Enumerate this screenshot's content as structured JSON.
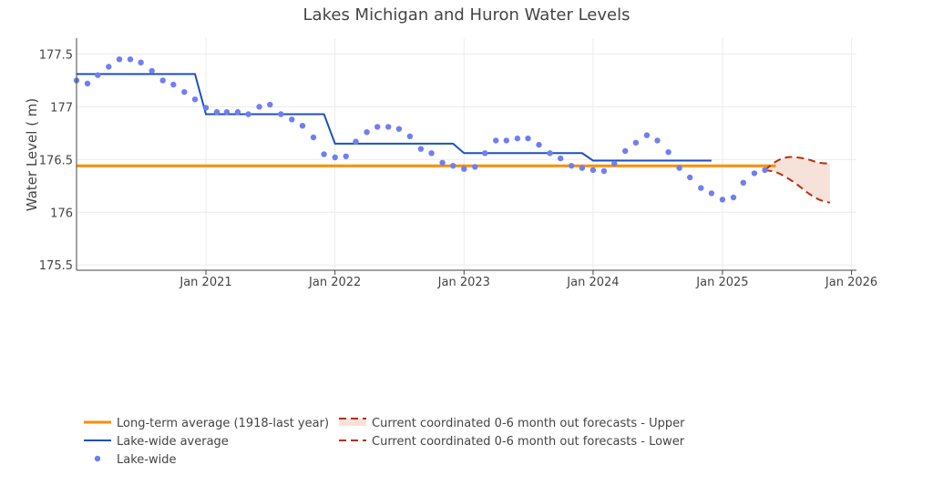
{
  "chart_data": {
    "type": "line",
    "title": "Lakes Michigan and Huron Water Levels",
    "xlabel": "",
    "ylabel": "Water Level ( m)",
    "x_range": [
      "2020-01-01",
      "2026-01-15"
    ],
    "ylim": [
      175.45,
      177.65
    ],
    "x_ticks": [
      {
        "date": "2021-01-01",
        "label": "Jan 2021"
      },
      {
        "date": "2022-01-01",
        "label": "Jan 2022"
      },
      {
        "date": "2023-01-01",
        "label": "Jan 2023"
      },
      {
        "date": "2024-01-01",
        "label": "Jan 2024"
      },
      {
        "date": "2025-01-01",
        "label": "Jan 2025"
      },
      {
        "date": "2026-01-01",
        "label": "Jan 2026"
      }
    ],
    "y_ticks": [
      {
        "value": 175.5,
        "label": "175.5"
      },
      {
        "value": 176,
        "label": "176"
      },
      {
        "value": 176.5,
        "label": "176.5"
      },
      {
        "value": 177,
        "label": "177"
      },
      {
        "value": 177.5,
        "label": "177.5"
      }
    ],
    "grid": true,
    "legend_position": "bottom-left",
    "colors": {
      "long_term": "#ff8c00",
      "lake_avg": "#1f4fbf",
      "monthly": "#6f7ff0",
      "forecast": "#b5300c",
      "forecast_fill": "#f7e2da",
      "grid": "#ececec",
      "axis": "#444444",
      "text": "#444444"
    },
    "series": [
      {
        "name": "Long-term average (1918-last year)",
        "kind": "line",
        "points": [
          {
            "x": "2020-01-01",
            "y": 176.44
          },
          {
            "x": "2025-06-01",
            "y": 176.44
          }
        ]
      },
      {
        "name": "Lake-wide average",
        "kind": "line",
        "points": [
          {
            "x": "2020-01-01",
            "y": 177.31
          },
          {
            "x": "2020-12-01",
            "y": 177.31
          },
          {
            "x": "2021-01-01",
            "y": 176.93
          },
          {
            "x": "2021-12-01",
            "y": 176.93
          },
          {
            "x": "2022-01-01",
            "y": 176.65
          },
          {
            "x": "2022-12-01",
            "y": 176.65
          },
          {
            "x": "2023-01-01",
            "y": 176.56
          },
          {
            "x": "2023-12-01",
            "y": 176.56
          },
          {
            "x": "2024-01-01",
            "y": 176.49
          },
          {
            "x": "2024-12-01",
            "y": 176.49
          }
        ]
      },
      {
        "name": "Lake-wide",
        "kind": "markers",
        "points": [
          {
            "x": "2020-01-01",
            "y": 177.25
          },
          {
            "x": "2020-02-01",
            "y": 177.22
          },
          {
            "x": "2020-03-01",
            "y": 177.3
          },
          {
            "x": "2020-04-01",
            "y": 177.38
          },
          {
            "x": "2020-05-01",
            "y": 177.45
          },
          {
            "x": "2020-06-01",
            "y": 177.45
          },
          {
            "x": "2020-07-01",
            "y": 177.42
          },
          {
            "x": "2020-08-01",
            "y": 177.34
          },
          {
            "x": "2020-09-01",
            "y": 177.25
          },
          {
            "x": "2020-10-01",
            "y": 177.21
          },
          {
            "x": "2020-11-01",
            "y": 177.14
          },
          {
            "x": "2020-12-01",
            "y": 177.07
          },
          {
            "x": "2021-01-01",
            "y": 176.99
          },
          {
            "x": "2021-02-01",
            "y": 176.95
          },
          {
            "x": "2021-03-01",
            "y": 176.95
          },
          {
            "x": "2021-04-01",
            "y": 176.95
          },
          {
            "x": "2021-05-01",
            "y": 176.93
          },
          {
            "x": "2021-06-01",
            "y": 177.0
          },
          {
            "x": "2021-07-01",
            "y": 177.02
          },
          {
            "x": "2021-08-01",
            "y": 176.93
          },
          {
            "x": "2021-09-01",
            "y": 176.88
          },
          {
            "x": "2021-10-01",
            "y": 176.82
          },
          {
            "x": "2021-11-01",
            "y": 176.71
          },
          {
            "x": "2021-12-01",
            "y": 176.55
          },
          {
            "x": "2022-01-01",
            "y": 176.52
          },
          {
            "x": "2022-02-01",
            "y": 176.53
          },
          {
            "x": "2022-03-01",
            "y": 176.67
          },
          {
            "x": "2022-04-01",
            "y": 176.76
          },
          {
            "x": "2022-05-01",
            "y": 176.81
          },
          {
            "x": "2022-06-01",
            "y": 176.81
          },
          {
            "x": "2022-07-01",
            "y": 176.79
          },
          {
            "x": "2022-08-01",
            "y": 176.72
          },
          {
            "x": "2022-09-01",
            "y": 176.6
          },
          {
            "x": "2022-10-01",
            "y": 176.56
          },
          {
            "x": "2022-11-01",
            "y": 176.47
          },
          {
            "x": "2022-12-01",
            "y": 176.44
          },
          {
            "x": "2023-01-01",
            "y": 176.41
          },
          {
            "x": "2023-02-01",
            "y": 176.43
          },
          {
            "x": "2023-03-01",
            "y": 176.56
          },
          {
            "x": "2023-04-01",
            "y": 176.68
          },
          {
            "x": "2023-05-01",
            "y": 176.68
          },
          {
            "x": "2023-06-01",
            "y": 176.7
          },
          {
            "x": "2023-07-01",
            "y": 176.7
          },
          {
            "x": "2023-08-01",
            "y": 176.64
          },
          {
            "x": "2023-09-01",
            "y": 176.56
          },
          {
            "x": "2023-10-01",
            "y": 176.51
          },
          {
            "x": "2023-11-01",
            "y": 176.44
          },
          {
            "x": "2023-12-01",
            "y": 176.42
          },
          {
            "x": "2024-01-01",
            "y": 176.4
          },
          {
            "x": "2024-02-01",
            "y": 176.39
          },
          {
            "x": "2024-03-01",
            "y": 176.46
          },
          {
            "x": "2024-04-01",
            "y": 176.58
          },
          {
            "x": "2024-05-01",
            "y": 176.66
          },
          {
            "x": "2024-06-01",
            "y": 176.73
          },
          {
            "x": "2024-07-01",
            "y": 176.68
          },
          {
            "x": "2024-08-01",
            "y": 176.57
          },
          {
            "x": "2024-09-01",
            "y": 176.42
          },
          {
            "x": "2024-10-01",
            "y": 176.33
          },
          {
            "x": "2024-11-01",
            "y": 176.23
          },
          {
            "x": "2024-12-01",
            "y": 176.18
          },
          {
            "x": "2025-01-01",
            "y": 176.12
          },
          {
            "x": "2025-02-01",
            "y": 176.14
          },
          {
            "x": "2025-03-01",
            "y": 176.28
          },
          {
            "x": "2025-04-01",
            "y": 176.37
          },
          {
            "x": "2025-05-01",
            "y": 176.4
          }
        ]
      },
      {
        "name": "Current coordinated 0-6 month out forecasts - Upper",
        "kind": "dash-fill",
        "points": [
          {
            "x": "2025-05-01",
            "y": 176.4
          },
          {
            "x": "2025-06-01",
            "y": 176.48
          },
          {
            "x": "2025-07-01",
            "y": 176.52
          },
          {
            "x": "2025-08-01",
            "y": 176.52
          },
          {
            "x": "2025-09-01",
            "y": 176.5
          },
          {
            "x": "2025-10-01",
            "y": 176.47
          },
          {
            "x": "2025-11-01",
            "y": 176.46
          }
        ]
      },
      {
        "name": "Current coordinated 0-6 month out forecasts - Lower",
        "kind": "dash",
        "points": [
          {
            "x": "2025-05-01",
            "y": 176.4
          },
          {
            "x": "2025-06-01",
            "y": 176.38
          },
          {
            "x": "2025-07-01",
            "y": 176.33
          },
          {
            "x": "2025-08-01",
            "y": 176.26
          },
          {
            "x": "2025-09-01",
            "y": 176.18
          },
          {
            "x": "2025-10-01",
            "y": 176.12
          },
          {
            "x": "2025-11-01",
            "y": 176.09
          }
        ]
      }
    ]
  }
}
